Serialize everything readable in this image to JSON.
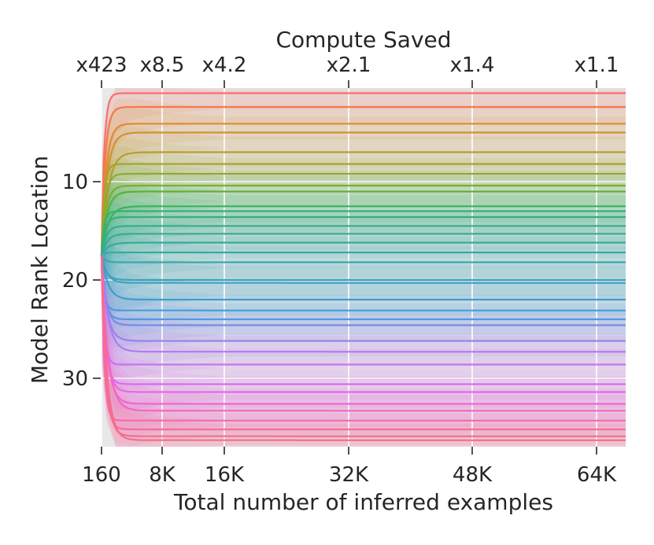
{
  "chart_data": {
    "type": "line",
    "title": "",
    "xlabel": "Total number of inferred examples",
    "ylabel": "Model Rank Location",
    "top_axis_label": "Compute Saved",
    "x_ticks": [
      {
        "value": 160,
        "label": "160"
      },
      {
        "value": 8000,
        "label": "8K"
      },
      {
        "value": 16000,
        "label": "16K"
      },
      {
        "value": 32000,
        "label": "32K"
      },
      {
        "value": 48000,
        "label": "48K"
      },
      {
        "value": 64000,
        "label": "64K"
      }
    ],
    "top_ticks": [
      {
        "value": 160,
        "label": "x423"
      },
      {
        "value": 8000,
        "label": "x8.5"
      },
      {
        "value": 16000,
        "label": "x4.2"
      },
      {
        "value": 32000,
        "label": "x2.1"
      },
      {
        "value": 48000,
        "label": "x1.4"
      },
      {
        "value": 64000,
        "label": "x1.1"
      }
    ],
    "y_ticks": [
      {
        "value": 10,
        "label": "10"
      },
      {
        "value": 20,
        "label": "20"
      },
      {
        "value": 30,
        "label": "30"
      }
    ],
    "xlim": [
      160,
      68000
    ],
    "ylim": [
      37.2,
      0.6
    ],
    "y_inverted": true,
    "grid": true,
    "series_start_rank": 17.5,
    "series_final_ranks": [
      1,
      2.4,
      4.1,
      5,
      7,
      8.2,
      9.2,
      10.4,
      11,
      12.5,
      13,
      13.6,
      14.5,
      15.3,
      16.2,
      17.2,
      18.2,
      20,
      20.3,
      22,
      23.1,
      24,
      24.6,
      26.2,
      27.3,
      28.6,
      30.6,
      31.4,
      32.6,
      33.3,
      34.3,
      35.2,
      35.9,
      36.3
    ],
    "colors": [
      "#f7706f",
      "#f37a4a",
      "#e08b2e",
      "#d0932c",
      "#be9b2c",
      "#a9a22f",
      "#94a831",
      "#7aae33",
      "#55b43c",
      "#37b558",
      "#33b26e",
      "#34b07c",
      "#35ae89",
      "#36ac93",
      "#37aa9c",
      "#38a9a5",
      "#39a7ad",
      "#3aa5b6",
      "#3ca3c0",
      "#3d9fcb",
      "#42a0d8",
      "#5a94e0",
      "#7a8ae6",
      "#9a82ea",
      "#b27aee",
      "#c674ef",
      "#d86df0",
      "#e668e6",
      "#ef65d7",
      "#f266c6",
      "#f468b4",
      "#f56aa4",
      "#f66c94",
      "#f76e85"
    ]
  }
}
